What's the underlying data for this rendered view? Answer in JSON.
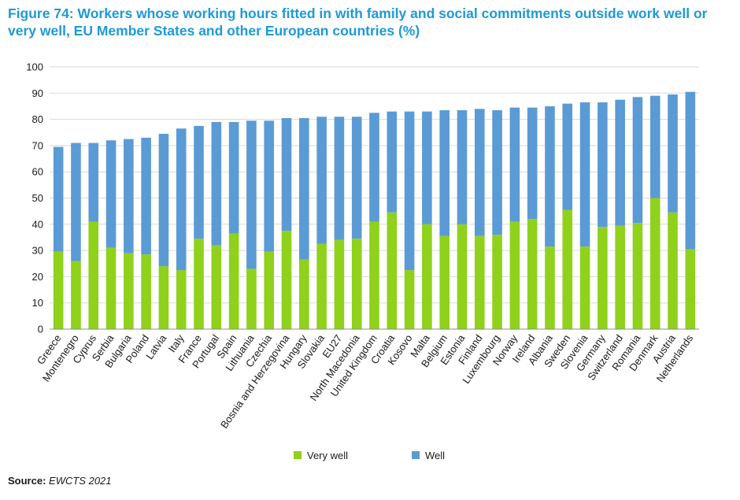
{
  "title": "Figure 74: Workers whose working hours fitted in with family and social commitments outside work well or very well, EU Member States and other European countries (%)",
  "source_label": "Source:",
  "source_value": "EWCTS 2021",
  "colors": {
    "title": "#1d9ad6",
    "very_well": "#8fd11b",
    "well": "#5b9bd5"
  },
  "chart_data": {
    "type": "bar",
    "stacked": true,
    "title": "Figure 74: Workers whose working hours fitted in with family and social commitments outside work well or very well, EU Member States and other European countries (%)",
    "xlabel": "",
    "ylabel": "",
    "ylim": [
      0,
      100
    ],
    "yticks": [
      0,
      10,
      20,
      30,
      40,
      50,
      60,
      70,
      80,
      90,
      100
    ],
    "grid": true,
    "legend": "bottom",
    "categories": [
      "Greece",
      "Montenegro",
      "Cyprus",
      "Serbia",
      "Bulgaria",
      "Poland",
      "Latvia",
      "Italy",
      "France",
      "Portugal",
      "Spain",
      "Lithuania",
      "Czechia",
      "Bosnia and Herzegovina",
      "Hungary",
      "Slovakia",
      "EU27",
      "North Macedonia",
      "United Kingdom",
      "Croatia",
      "Kosovo",
      "Malta",
      "Belgium",
      "Estonia",
      "Finland",
      "Luxembourg",
      "Norway",
      "Ireland",
      "Albania",
      "Sweden",
      "Slovenia",
      "Germany",
      "Switzerland",
      "Romania",
      "Denmark",
      "Austria",
      "Netherlands"
    ],
    "series": [
      {
        "name": "Very well",
        "color": "#8fd11b",
        "values": [
          29.5,
          26,
          41,
          31,
          29,
          28.5,
          24,
          22.5,
          34.5,
          32,
          36.5,
          23,
          29.5,
          37.5,
          26.5,
          32.5,
          34,
          34.5,
          41,
          44.5,
          22.5,
          40,
          35.5,
          40,
          35.5,
          36,
          41,
          42,
          31.5,
          45.5,
          31.5,
          39,
          39.5,
          40.5,
          50,
          44.5,
          30.5
        ]
      },
      {
        "name": "Well",
        "color": "#5b9bd5",
        "values": [
          40,
          45,
          30,
          41,
          43.5,
          44.5,
          50.5,
          54,
          43,
          47,
          42.5,
          56.5,
          50,
          43,
          54,
          48.5,
          47,
          46.5,
          41.5,
          38.5,
          60.5,
          43,
          48,
          43.5,
          48.5,
          47.5,
          43.5,
          42.5,
          53.5,
          40.5,
          55,
          47.5,
          48,
          48,
          39,
          45,
          60
        ]
      }
    ]
  }
}
